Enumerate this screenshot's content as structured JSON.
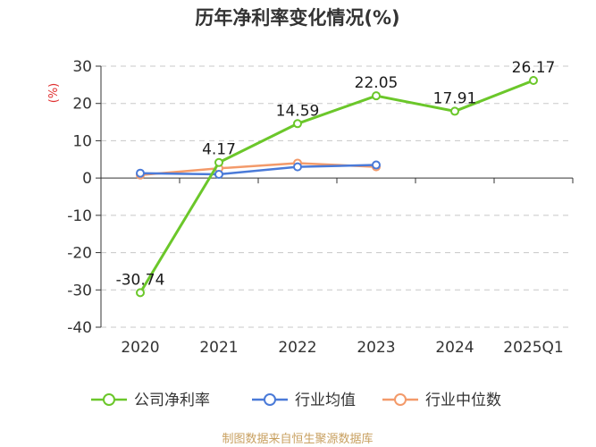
{
  "chart_data": {
    "type": "line",
    "title": "历年净利率变化情况(%)",
    "ylabel": "(%)",
    "xlabel": "",
    "categories": [
      "2020",
      "2021",
      "2022",
      "2023",
      "2024",
      "2025Q1"
    ],
    "ylim": [
      -40,
      30
    ],
    "yticks": [
      "30",
      "20",
      "10",
      "0",
      "-10",
      "-20",
      "-30",
      "-40"
    ],
    "ytick_values": [
      30,
      20,
      10,
      0,
      -10,
      -20,
      -30,
      -40
    ],
    "grid": true,
    "legend_position": "bottom",
    "series": [
      {
        "name": "公司净利率",
        "color": "#6bc72a",
        "values": [
          -30.74,
          4.17,
          14.59,
          22.05,
          17.91,
          26.17
        ],
        "labels": [
          "-30.74",
          "4.17",
          "14.59",
          "22.05",
          "17.91",
          "26.17"
        ]
      },
      {
        "name": "行业均值",
        "color": "#4a7ad8",
        "values": [
          1.3,
          1.0,
          3.0,
          3.5,
          null,
          null
        ]
      },
      {
        "name": "行业中位数",
        "color": "#f39a6a",
        "values": [
          0.8,
          2.6,
          4.0,
          3.0,
          null,
          null
        ]
      }
    ]
  },
  "footer": {
    "source": "制图数据来自恒生聚源数据库"
  }
}
